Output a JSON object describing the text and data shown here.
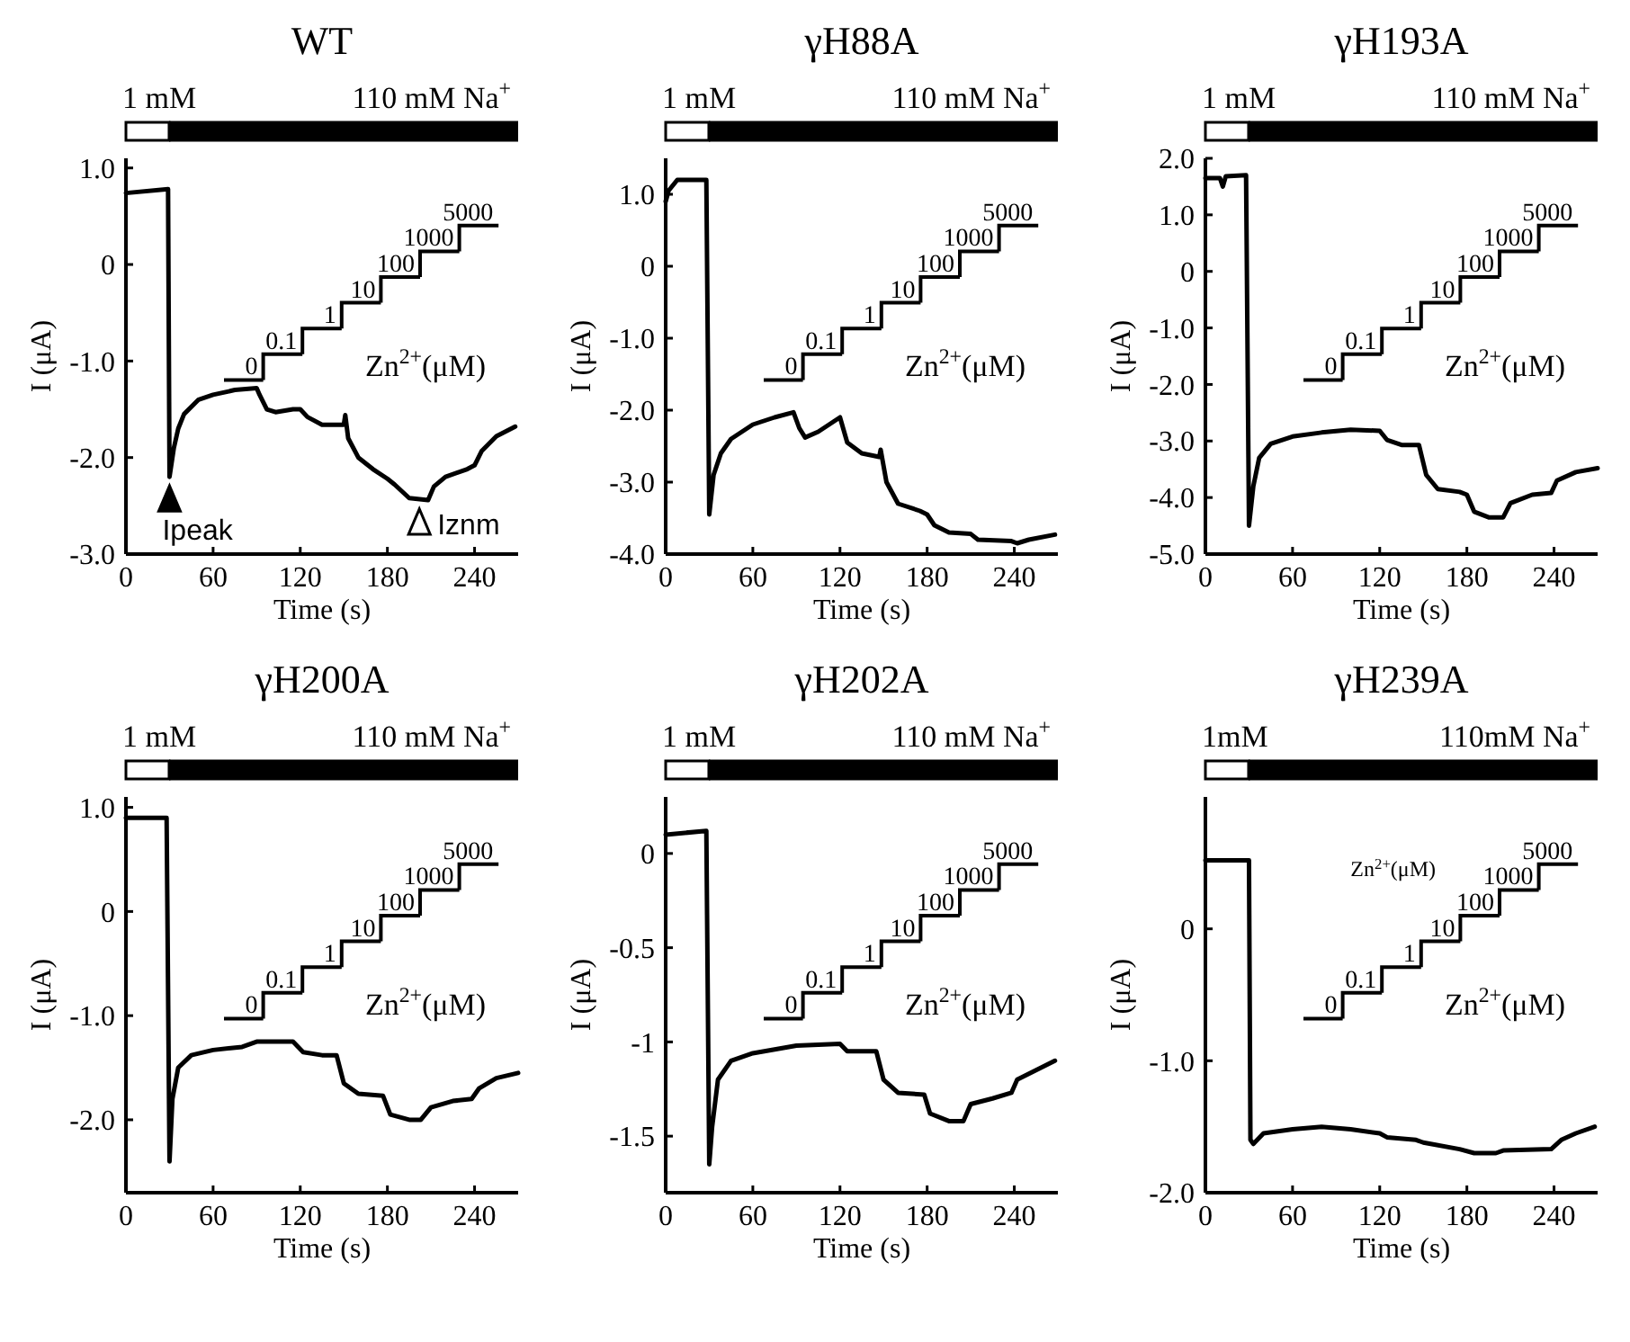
{
  "chart_data": [
    {
      "type": "line",
      "title": "WT",
      "xlabel": "Time (s)",
      "ylabel": "I (μA)",
      "xlim": [
        0,
        270
      ],
      "xticks": [
        0,
        60,
        120,
        180,
        240
      ],
      "ylim": [
        -3.0,
        1.1
      ],
      "yticks": [
        {
          "value": -3,
          "label": "-3.0"
        },
        {
          "value": -2,
          "label": "-2.0"
        },
        {
          "value": -1,
          "label": "-1.0"
        },
        0,
        {
          "value": 1,
          "label": "1.0"
        }
      ],
      "x": [
        0,
        29,
        30,
        33,
        36,
        40,
        50,
        60,
        75,
        90,
        92,
        97,
        103,
        115,
        120,
        125,
        135,
        150,
        151,
        153,
        160,
        170,
        180,
        185,
        195,
        208,
        212,
        220,
        235,
        240,
        245,
        255,
        268
      ],
      "series": [
        {
          "color": "#000000",
          "values": [
            0.74,
            0.78,
            -2.2,
            -1.9,
            -1.7,
            -1.55,
            -1.4,
            -1.35,
            -1.3,
            -1.28,
            -1.35,
            -1.5,
            -1.53,
            -1.5,
            -1.5,
            -1.58,
            -1.66,
            -1.66,
            -1.56,
            -1.8,
            -2.0,
            -2.12,
            -2.22,
            -2.28,
            -2.42,
            -2.44,
            -2.3,
            -2.2,
            -2.12,
            -2.08,
            -1.93,
            -1.78,
            -1.68
          ]
        }
      ],
      "annotations": [
        "1 mM",
        "110 mM Na$^{+}$",
        "0",
        "0.1",
        "1",
        "10",
        "100",
        "1000",
        "5000",
        "Zn$^{2+}$(μM)",
        {
          "text": "Ipeak",
          "x": 30,
          "y": -2.2
        },
        {
          "text": "Iznm",
          "x": 202,
          "y": -2.44
        }
      ]
    },
    {
      "type": "line",
      "title": "γH88A",
      "xlabel": "Time (s)",
      "ylabel": "I (μA)",
      "xlim": [
        0,
        270
      ],
      "xticks": [
        0,
        60,
        120,
        180,
        240
      ],
      "ylim": [
        -4.0,
        1.5
      ],
      "yticks": [
        {
          "value": -4,
          "label": "-4.0"
        },
        {
          "value": -3,
          "label": "-3.0"
        },
        {
          "value": -2,
          "label": "-2.0"
        },
        {
          "value": -1,
          "label": "-1.0"
        },
        0,
        {
          "value": 1,
          "label": "1.0"
        }
      ],
      "x": [
        0,
        2,
        8,
        28,
        30,
        33,
        38,
        45,
        60,
        75,
        88,
        92,
        96,
        105,
        120,
        125,
        135,
        147,
        148,
        152,
        160,
        175,
        180,
        185,
        195,
        210,
        215,
        238,
        242,
        250,
        268
      ],
      "series": [
        {
          "color": "#000000",
          "values": [
            0.9,
            1.05,
            1.2,
            1.2,
            -3.45,
            -2.9,
            -2.6,
            -2.4,
            -2.2,
            -2.1,
            -2.03,
            -2.25,
            -2.38,
            -2.3,
            -2.1,
            -2.45,
            -2.6,
            -2.65,
            -2.55,
            -3.0,
            -3.3,
            -3.4,
            -3.45,
            -3.6,
            -3.7,
            -3.72,
            -3.8,
            -3.82,
            -3.85,
            -3.8,
            -3.73
          ]
        }
      ],
      "annotations": [
        "1 mM",
        "110 mM Na$^{+}$",
        "0",
        "0.1",
        "1",
        "10",
        "100",
        "1000",
        "5000",
        "Zn$^{2+}$(μM)"
      ]
    },
    {
      "type": "line",
      "title": "γH193A",
      "xlabel": "Time (s)",
      "ylabel": "I (μA)",
      "xlim": [
        0,
        270
      ],
      "xticks": [
        0,
        60,
        120,
        180,
        240
      ],
      "ylim": [
        -5.0,
        2.0
      ],
      "yticks": [
        {
          "value": -5,
          "label": "-5.0"
        },
        {
          "value": -4,
          "label": "-4.0"
        },
        {
          "value": -3,
          "label": "-3.0"
        },
        {
          "value": -2,
          "label": "-2.0"
        },
        {
          "value": -1,
          "label": "-1.0"
        },
        0,
        {
          "value": 1,
          "label": "1.0"
        },
        {
          "value": 2,
          "label": "2.0"
        }
      ],
      "x": [
        0,
        10,
        12,
        14,
        28,
        30,
        33,
        37,
        45,
        60,
        80,
        100,
        120,
        125,
        135,
        147,
        152,
        160,
        175,
        180,
        185,
        195,
        205,
        210,
        225,
        238,
        242,
        255,
        270
      ],
      "series": [
        {
          "color": "#000000",
          "values": [
            1.65,
            1.65,
            1.5,
            1.68,
            1.7,
            -4.5,
            -3.8,
            -3.3,
            -3.05,
            -2.92,
            -2.85,
            -2.8,
            -2.82,
            -2.98,
            -3.07,
            -3.07,
            -3.6,
            -3.85,
            -3.9,
            -3.95,
            -4.25,
            -4.35,
            -4.35,
            -4.1,
            -3.95,
            -3.92,
            -3.7,
            -3.55,
            -3.48
          ]
        }
      ],
      "annotations": [
        "1 mM",
        "110 mM Na$^{+}$",
        "0",
        "0.1",
        "1",
        "10",
        "100",
        "1000",
        "5000",
        "Zn$^{2+}$(μM)"
      ]
    },
    {
      "type": "line",
      "title": "γH200A",
      "xlabel": "Time (s)",
      "ylabel": "I (μA)",
      "xlim": [
        0,
        270
      ],
      "xticks": [
        0,
        60,
        120,
        180,
        240
      ],
      "ylim": [
        -2.7,
        1.1
      ],
      "yticks": [
        {
          "value": -2,
          "label": "-2.0"
        },
        {
          "value": -1,
          "label": "-1.0"
        },
        0,
        {
          "value": 1,
          "label": "1.0"
        }
      ],
      "x": [
        0,
        28,
        30,
        32,
        36,
        45,
        60,
        80,
        90,
        115,
        122,
        135,
        145,
        150,
        160,
        177,
        182,
        195,
        203,
        210,
        225,
        238,
        243,
        255,
        270
      ],
      "series": [
        {
          "color": "#000000",
          "values": [
            0.9,
            0.9,
            -2.4,
            -1.8,
            -1.5,
            -1.38,
            -1.33,
            -1.3,
            -1.25,
            -1.25,
            -1.35,
            -1.38,
            -1.38,
            -1.65,
            -1.75,
            -1.77,
            -1.95,
            -2.0,
            -2.0,
            -1.88,
            -1.82,
            -1.8,
            -1.7,
            -1.6,
            -1.55
          ]
        }
      ],
      "annotations": [
        "1 mM",
        "110 mM Na$^{+}$",
        "0",
        "0.1",
        "1",
        "10",
        "100",
        "1000",
        "5000",
        "Zn$^{2+}$(μM)"
      ]
    },
    {
      "type": "line",
      "title": "γH202A",
      "xlabel": "Time (s)",
      "ylabel": "I (μA)",
      "xlim": [
        0,
        270
      ],
      "xticks": [
        0,
        60,
        120,
        180,
        240
      ],
      "ylim": [
        -1.8,
        0.3
      ],
      "yticks": [
        -1.5,
        -1.0,
        -0.5,
        0
      ],
      "x": [
        0,
        28,
        30,
        32,
        36,
        45,
        60,
        90,
        120,
        125,
        145,
        150,
        160,
        178,
        182,
        195,
        205,
        210,
        225,
        238,
        242,
        255,
        268
      ],
      "series": [
        {
          "color": "#000000",
          "values": [
            0.1,
            0.12,
            -1.65,
            -1.45,
            -1.2,
            -1.1,
            -1.06,
            -1.02,
            -1.01,
            -1.05,
            -1.05,
            -1.2,
            -1.27,
            -1.28,
            -1.38,
            -1.42,
            -1.42,
            -1.33,
            -1.3,
            -1.27,
            -1.2,
            -1.15,
            -1.1
          ]
        }
      ],
      "annotations": [
        "1 mM",
        "110 mM Na$^{+}$",
        "0",
        "0.1",
        "1",
        "10",
        "100",
        "1000",
        "5000",
        "Zn$^{2+}$(μM)"
      ]
    },
    {
      "type": "line",
      "title": "γH239A",
      "xlabel": "Time (s)",
      "ylabel": "I (μA)",
      "xlim": [
        0,
        270
      ],
      "xticks": [
        0,
        60,
        120,
        180,
        240
      ],
      "ylim": [
        -2.0,
        1.0
      ],
      "yticks": [
        {
          "value": -2,
          "label": "-2.0"
        },
        {
          "value": -1,
          "label": "-1.0"
        },
        0
      ],
      "x": [
        0,
        30,
        31,
        33,
        40,
        60,
        80,
        100,
        120,
        125,
        145,
        150,
        175,
        185,
        200,
        205,
        238,
        245,
        255,
        268
      ],
      "series": [
        {
          "color": "#000000",
          "values": [
            0.52,
            0.52,
            -1.6,
            -1.63,
            -1.55,
            -1.52,
            -1.5,
            -1.52,
            -1.55,
            -1.58,
            -1.6,
            -1.62,
            -1.67,
            -1.7,
            -1.7,
            -1.68,
            -1.67,
            -1.6,
            -1.55,
            -1.5
          ]
        }
      ],
      "annotations": [
        "1mM",
        "110mM Na$^{+}$",
        "0",
        "0.1",
        "1",
        "10",
        "100",
        "1000",
        "5000",
        "Zn$^{2+}$(μM)",
        "Zn$^{2+}$(μM)"
      ]
    }
  ]
}
